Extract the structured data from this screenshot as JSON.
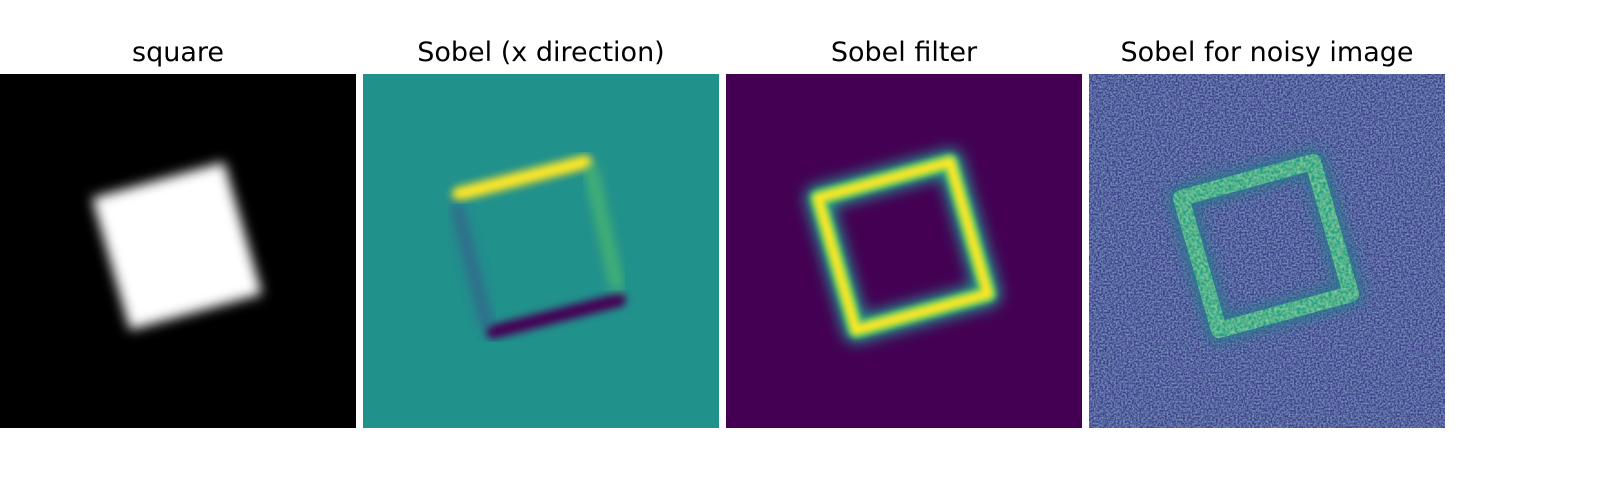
{
  "panels": [
    {
      "title": "square"
    },
    {
      "title": "Sobel (x direction)"
    },
    {
      "title": "Sobel filter"
    },
    {
      "title": "Sobel for noisy image"
    }
  ],
  "colors": {
    "black": "#000000",
    "white": "#ffffff",
    "viridis_dark": "#440154",
    "viridis_blue": "#3b528b",
    "viridis_teal": "#21918c",
    "viridis_green": "#5ec962",
    "viridis_yellow": "#fde725"
  }
}
